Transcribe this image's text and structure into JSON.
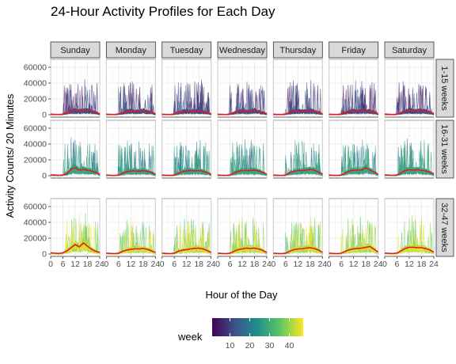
{
  "chart_data": {
    "type": "line",
    "title": "24-Hour Activity Profiles for Each Day",
    "xlabel": "Hour of the Day",
    "ylabel": "Activity Counts/ 20 Minutes",
    "columns": [
      "Sunday",
      "Monday",
      "Tuesday",
      "Wednesday",
      "Thursday",
      "Friday",
      "Saturday"
    ],
    "rows": [
      "1-15 weeks",
      "16-31 weeks",
      "32-47 weeks"
    ],
    "x_ticks": [
      0,
      6,
      12,
      18,
      24
    ],
    "x_tick_labels": [
      "0",
      "6",
      "12",
      "18",
      "24"
    ],
    "xlim": [
      0,
      24
    ],
    "y_ticks": [
      0,
      20000,
      40000,
      60000
    ],
    "y_tick_labels": [
      "0",
      "20000",
      "40000",
      "60000"
    ],
    "ylim": [
      -3000,
      70000
    ],
    "grid": true,
    "legend": {
      "title": "week",
      "position": "bottom",
      "type": "colorbar",
      "range": [
        1,
        47
      ],
      "ticks": [
        10,
        20,
        30,
        40
      ],
      "tick_labels": [
        "10",
        "20",
        "30",
        "40"
      ],
      "colors": [
        "#440154",
        "#3b528b",
        "#21908c",
        "#5dc863",
        "#fde725"
      ]
    },
    "trend_color": "#e31a1c",
    "trend_x": [
      0,
      2,
      4,
      6,
      8,
      10,
      12,
      14,
      16,
      18,
      20,
      22,
      24
    ],
    "trend_series": [
      {
        "row": "1-15 weeks",
        "column": "Sunday",
        "values": [
          800,
          400,
          300,
          700,
          2500,
          4500,
          5500,
          5000,
          5200,
          6000,
          4500,
          3000,
          1500
        ]
      },
      {
        "row": "1-15 weeks",
        "column": "Monday",
        "values": [
          700,
          400,
          300,
          1000,
          2500,
          4500,
          5000,
          4000,
          4500,
          5500,
          4000,
          3000,
          1500
        ]
      },
      {
        "row": "1-15 weeks",
        "column": "Tuesday",
        "values": [
          700,
          400,
          300,
          1000,
          2500,
          4500,
          5000,
          4000,
          4300,
          5200,
          3800,
          2800,
          1400
        ]
      },
      {
        "row": "1-15 weeks",
        "column": "Wednesday",
        "values": [
          700,
          400,
          300,
          1000,
          2500,
          4500,
          5000,
          4200,
          4500,
          5500,
          4000,
          3000,
          1500
        ]
      },
      {
        "row": "1-15 weeks",
        "column": "Thursday",
        "values": [
          700,
          400,
          300,
          1000,
          2500,
          4500,
          5000,
          4300,
          4600,
          5500,
          4200,
          3000,
          1500
        ]
      },
      {
        "row": "1-15 weeks",
        "column": "Friday",
        "values": [
          700,
          400,
          300,
          1000,
          2500,
          4500,
          5000,
          4300,
          4700,
          5600,
          4500,
          3200,
          1600
        ]
      },
      {
        "row": "1-15 weeks",
        "column": "Saturday",
        "values": [
          900,
          500,
          300,
          700,
          2500,
          4500,
          5500,
          5000,
          5000,
          5500,
          4500,
          3000,
          1700
        ]
      },
      {
        "row": "16-31 weeks",
        "column": "Sunday",
        "values": [
          1000,
          800,
          500,
          800,
          3000,
          8000,
          10000,
          7000,
          8000,
          7000,
          6000,
          4000,
          2000
        ]
      },
      {
        "row": "16-31 weeks",
        "column": "Monday",
        "values": [
          800,
          500,
          300,
          800,
          3000,
          5000,
          6000,
          6000,
          5500,
          6500,
          5500,
          4000,
          2000
        ]
      },
      {
        "row": "16-31 weeks",
        "column": "Tuesday",
        "values": [
          800,
          500,
          300,
          800,
          3000,
          5000,
          6000,
          6500,
          6000,
          6500,
          5500,
          4000,
          2000
        ]
      },
      {
        "row": "16-31 weeks",
        "column": "Wednesday",
        "values": [
          800,
          500,
          300,
          800,
          3500,
          5500,
          6500,
          6500,
          6500,
          7000,
          6000,
          4000,
          2000
        ]
      },
      {
        "row": "16-31 weeks",
        "column": "Thursday",
        "values": [
          800,
          500,
          300,
          800,
          3500,
          5500,
          6500,
          6500,
          7000,
          8000,
          7000,
          4500,
          2200
        ]
      },
      {
        "row": "16-31 weeks",
        "column": "Friday",
        "values": [
          800,
          500,
          300,
          800,
          3500,
          6000,
          7000,
          7000,
          7000,
          10000,
          7000,
          4500,
          2000
        ]
      },
      {
        "row": "16-31 weeks",
        "column": "Saturday",
        "values": [
          1000,
          700,
          400,
          800,
          3500,
          6500,
          7500,
          7000,
          7500,
          7000,
          6000,
          4500,
          2500
        ]
      },
      {
        "row": "32-47 weeks",
        "column": "Sunday",
        "values": [
          1500,
          1000,
          700,
          1500,
          4000,
          8000,
          12000,
          9000,
          14000,
          10000,
          6000,
          3500,
          2000
        ]
      },
      {
        "row": "32-47 weeks",
        "column": "Monday",
        "values": [
          1000,
          700,
          500,
          1000,
          3500,
          5000,
          6000,
          6500,
          6500,
          7000,
          6000,
          4000,
          2000
        ]
      },
      {
        "row": "32-47 weeks",
        "column": "Tuesday",
        "values": [
          1000,
          700,
          500,
          1000,
          3500,
          5000,
          5500,
          6500,
          7000,
          7500,
          6500,
          4500,
          2000
        ]
      },
      {
        "row": "32-47 weeks",
        "column": "Wednesday",
        "values": [
          1000,
          700,
          500,
          1000,
          3500,
          5500,
          6500,
          7500,
          7000,
          7500,
          6500,
          4500,
          2000
        ]
      },
      {
        "row": "32-47 weeks",
        "column": "Thursday",
        "values": [
          1000,
          700,
          500,
          1000,
          3500,
          5500,
          6500,
          6500,
          7500,
          8000,
          7000,
          5000,
          2200
        ]
      },
      {
        "row": "32-47 weeks",
        "column": "Friday",
        "values": [
          1000,
          700,
          500,
          1000,
          3500,
          5500,
          6500,
          7000,
          7500,
          8500,
          9500,
          6000,
          2500
        ]
      },
      {
        "row": "32-47 weeks",
        "column": "Saturday",
        "values": [
          1200,
          800,
          600,
          1200,
          4000,
          7000,
          8500,
          8500,
          8000,
          8000,
          7000,
          5000,
          2500
        ]
      }
    ]
  }
}
